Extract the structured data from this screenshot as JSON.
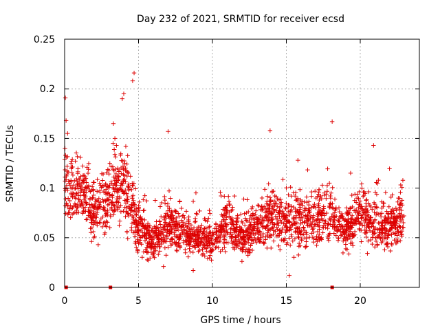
{
  "chart_data": {
    "type": "scatter",
    "title": "Day 232 of 2021, SRMTID for receiver ecsd",
    "xlabel": "GPS time / hours",
    "ylabel": "SRMTID / TECUs",
    "xlim": [
      0,
      24
    ],
    "ylim": [
      0,
      0.25
    ],
    "x_ticks": [
      0,
      5,
      10,
      15,
      20
    ],
    "x_tick_labels": [
      "0",
      "5",
      "10",
      "15",
      "20"
    ],
    "y_ticks": [
      0,
      0.05,
      0.1,
      0.15,
      0.2,
      0.25
    ],
    "y_tick_labels": [
      "0",
      "0.05",
      "0.1",
      "0.15",
      "0.2",
      "0.25"
    ],
    "grid": true,
    "marker": "plus",
    "series_color": "#dd0000",
    "outliers": [
      {
        "x": 0.05,
        "y": 0.191
      },
      {
        "x": 0.1,
        "y": 0.168
      },
      {
        "x": 0.2,
        "y": 0.155
      },
      {
        "x": 3.3,
        "y": 0.165
      },
      {
        "x": 3.4,
        "y": 0.15
      },
      {
        "x": 3.9,
        "y": 0.19
      },
      {
        "x": 4.0,
        "y": 0.195
      },
      {
        "x": 4.6,
        "y": 0.208
      },
      {
        "x": 4.7,
        "y": 0.216
      },
      {
        "x": 7.0,
        "y": 0.157
      },
      {
        "x": 13.9,
        "y": 0.158
      },
      {
        "x": 18.1,
        "y": 0.167
      },
      {
        "x": 20.9,
        "y": 0.143
      },
      {
        "x": 15.2,
        "y": 0.012
      },
      {
        "x": 8.7,
        "y": 0.017
      }
    ],
    "baseline_points": [
      {
        "x": 0.1,
        "y": 0.0
      },
      {
        "x": 3.1,
        "y": 0.0
      },
      {
        "x": 18.1,
        "y": 0.0
      }
    ],
    "envelope_hours": [
      0,
      1,
      2,
      3,
      4,
      5,
      6,
      7,
      8,
      9,
      10,
      11,
      12,
      13,
      14,
      15,
      16,
      17,
      18,
      19,
      20,
      21,
      22,
      23
    ],
    "envelope_center": [
      0.1,
      0.095,
      0.08,
      0.09,
      0.105,
      0.06,
      0.045,
      0.06,
      0.055,
      0.05,
      0.045,
      0.065,
      0.05,
      0.06,
      0.07,
      0.07,
      0.065,
      0.075,
      0.07,
      0.06,
      0.075,
      0.06,
      0.06,
      0.07
    ],
    "envelope_spread": [
      0.04,
      0.035,
      0.035,
      0.04,
      0.045,
      0.025,
      0.022,
      0.03,
      0.025,
      0.022,
      0.02,
      0.025,
      0.02,
      0.025,
      0.03,
      0.03,
      0.028,
      0.035,
      0.03,
      0.025,
      0.03,
      0.025,
      0.022,
      0.028
    ],
    "point_count": 2400
  }
}
